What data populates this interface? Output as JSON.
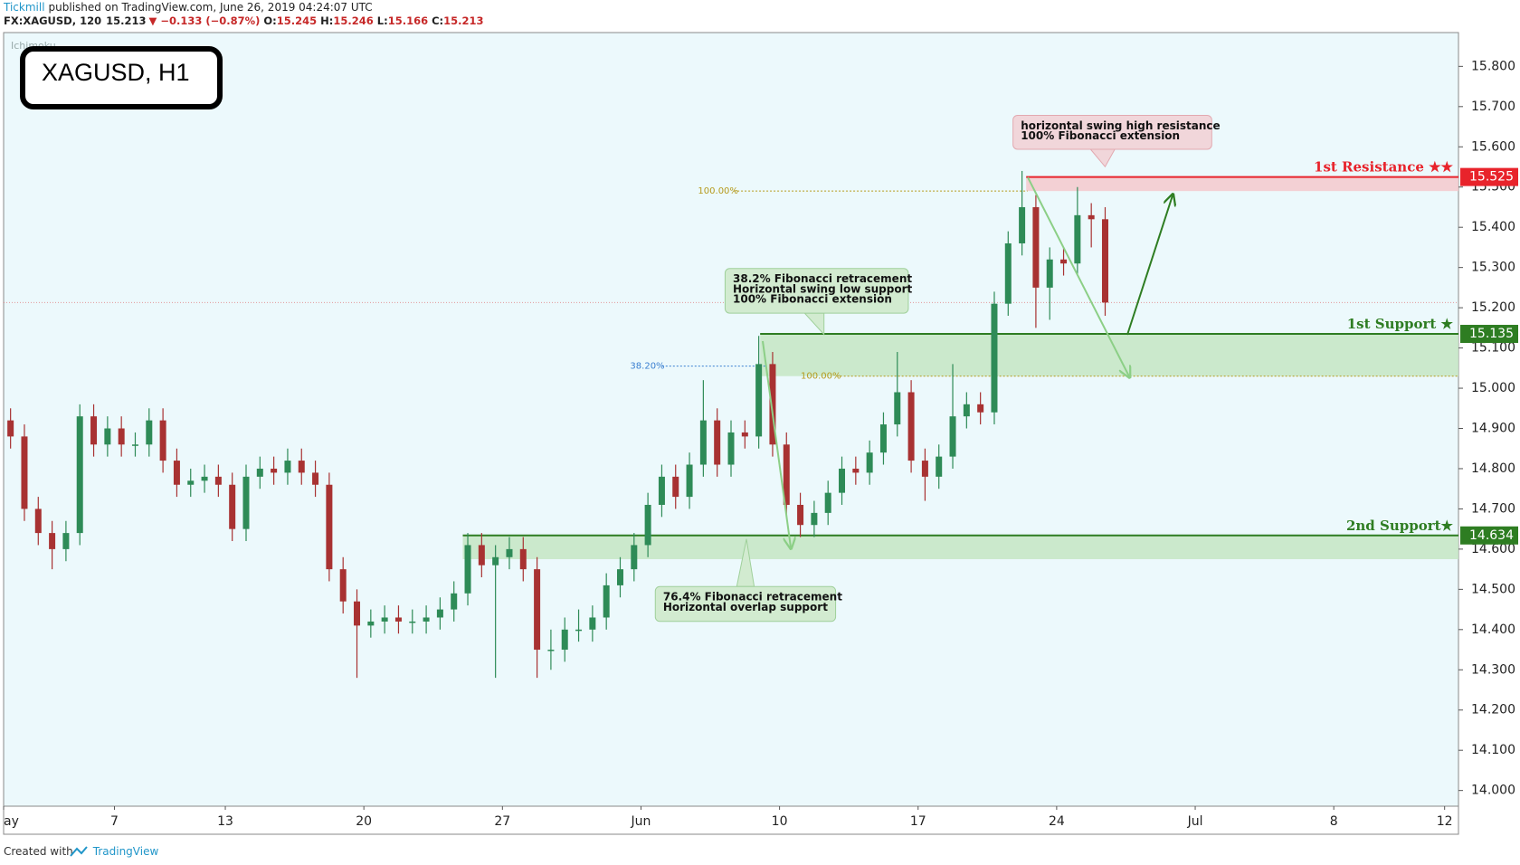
{
  "header": {
    "author": "Tickmill",
    "published": "published on TradingView.com, June 26, 2019 04:24:07 UTC",
    "symbol": "FX:XAGUSD, 120",
    "last": "15.213",
    "change": "▼ −0.133 (−0.87%)",
    "ohlc": [
      {
        "label": "O:",
        "value": "15.245"
      },
      {
        "label": "H:",
        "value": "15.246"
      },
      {
        "label": "L:",
        "value": "15.166"
      },
      {
        "label": "C:",
        "value": "15.213"
      }
    ]
  },
  "footer": {
    "created": "Created with",
    "brand": "TradingView"
  },
  "chart_data": {
    "type": "candlestick",
    "title": "XAGUSD, H1",
    "indicator": "Ichimoku",
    "up_color": "#2e8b57",
    "down_color": "#a83232",
    "xlim": [
      -13,
      39.5
    ],
    "ylim": [
      13.961,
      15.884
    ],
    "xticks": [
      {
        "value": -13,
        "label": "ay"
      },
      {
        "value": -9,
        "label": "7"
      },
      {
        "value": -5,
        "label": "13"
      },
      {
        "value": 0,
        "label": "20"
      },
      {
        "value": 5,
        "label": "27"
      },
      {
        "value": 10,
        "label": "Jun"
      },
      {
        "value": 15,
        "label": "10"
      },
      {
        "value": 20,
        "label": "17"
      },
      {
        "value": 25,
        "label": "24"
      },
      {
        "value": 30,
        "label": "Jul"
      },
      {
        "value": 35,
        "label": "8"
      },
      {
        "value": 39,
        "label": "12"
      }
    ],
    "yticks": [
      {
        "value": 14.0,
        "label": "14.000"
      },
      {
        "value": 14.1,
        "label": "14.100"
      },
      {
        "value": 14.2,
        "label": "14.200"
      },
      {
        "value": 14.3,
        "label": "14.300"
      },
      {
        "value": 14.4,
        "label": "14.400"
      },
      {
        "value": 14.5,
        "label": "14.500"
      },
      {
        "value": 14.6,
        "label": "14.600"
      },
      {
        "value": 14.7,
        "label": "14.700"
      },
      {
        "value": 14.8,
        "label": "14.800"
      },
      {
        "value": 14.9,
        "label": "14.900"
      },
      {
        "value": 15.0,
        "label": "15.000"
      },
      {
        "value": 15.1,
        "label": "15.100"
      },
      {
        "value": 15.2,
        "label": "15.200"
      },
      {
        "value": 15.3,
        "label": "15.300"
      },
      {
        "value": 15.4,
        "label": "15.400"
      },
      {
        "value": 15.5,
        "label": "15.500"
      },
      {
        "value": 15.6,
        "label": "15.600"
      },
      {
        "value": 15.7,
        "label": "15.700"
      },
      {
        "value": 15.8,
        "label": "15.800"
      }
    ],
    "x": [
      -12.75,
      -12.25,
      -11.75,
      -11.25,
      -10.75,
      -10.25,
      -9.75,
      -9.25,
      -8.75,
      -8.25,
      -7.75,
      -7.25,
      -6.75,
      -6.25,
      -5.75,
      -5.25,
      -4.75,
      -4.25,
      -3.75,
      -3.25,
      -2.75,
      -2.25,
      -1.75,
      -1.25,
      -0.75,
      -0.25,
      0.25,
      0.75,
      1.25,
      1.75,
      2.25,
      2.75,
      3.25,
      3.75,
      4.25,
      4.75,
      5.25,
      5.75,
      6.25,
      6.75,
      7.25,
      7.75,
      8.25,
      8.75,
      9.25,
      9.75,
      10.25,
      10.75,
      11.25,
      11.75,
      12.25,
      12.75,
      13.25,
      13.75,
      14.25,
      14.75,
      15.25,
      15.75,
      16.25,
      16.75,
      17.25,
      17.75,
      18.25,
      18.75,
      19.25,
      19.75,
      20.25,
      20.75,
      21.25,
      21.75,
      22.25,
      22.75,
      23.25,
      23.75,
      24.25,
      24.75,
      25.25,
      25.75,
      26.25,
      26.75
    ],
    "open": [
      14.92,
      14.88,
      14.7,
      14.64,
      14.6,
      14.64,
      14.93,
      14.86,
      14.9,
      14.86,
      14.86,
      14.92,
      14.82,
      14.76,
      14.77,
      14.78,
      14.76,
      14.65,
      14.78,
      14.8,
      14.79,
      14.82,
      14.79,
      14.76,
      14.55,
      14.47,
      14.41,
      14.42,
      14.43,
      14.42,
      14.42,
      14.43,
      14.45,
      14.49,
      14.61,
      14.56,
      14.58,
      14.6,
      14.55,
      14.35,
      14.35,
      14.4,
      14.4,
      14.43,
      14.51,
      14.55,
      14.61,
      14.71,
      14.78,
      14.73,
      14.81,
      14.92,
      14.81,
      14.89,
      14.88,
      15.06,
      14.86,
      14.71,
      14.66,
      14.69,
      14.74,
      14.8,
      14.79,
      14.84,
      14.91,
      14.99,
      14.82,
      14.78,
      14.83,
      14.93,
      14.96,
      14.94,
      15.21,
      15.36,
      15.45,
      15.25,
      15.32,
      15.31,
      15.43,
      15.42
    ],
    "high": [
      14.95,
      14.91,
      14.73,
      14.67,
      14.67,
      14.96,
      14.96,
      14.93,
      14.93,
      14.89,
      14.95,
      14.95,
      14.85,
      14.8,
      14.81,
      14.81,
      14.79,
      14.81,
      14.83,
      14.83,
      14.85,
      14.85,
      14.82,
      14.79,
      14.58,
      14.5,
      14.45,
      14.46,
      14.46,
      14.45,
      14.46,
      14.48,
      14.52,
      14.64,
      14.64,
      14.61,
      14.63,
      14.63,
      14.58,
      14.4,
      14.43,
      14.45,
      14.46,
      14.54,
      14.58,
      14.64,
      14.74,
      14.81,
      14.81,
      14.84,
      15.02,
      14.95,
      14.92,
      14.92,
      15.13,
      15.09,
      14.89,
      14.74,
      14.72,
      14.77,
      14.83,
      14.83,
      14.87,
      14.94,
      15.09,
      15.02,
      14.85,
      14.86,
      15.06,
      14.99,
      14.99,
      15.24,
      15.39,
      15.54,
      15.48,
      15.35,
      15.35,
      15.5,
      15.46,
      15.45
    ],
    "low": [
      14.85,
      14.67,
      14.61,
      14.55,
      14.57,
      14.61,
      14.83,
      14.83,
      14.83,
      14.83,
      14.83,
      14.79,
      14.73,
      14.73,
      14.74,
      14.73,
      14.62,
      14.62,
      14.75,
      14.76,
      14.76,
      14.76,
      14.73,
      14.52,
      14.44,
      14.28,
      14.38,
      14.39,
      14.39,
      14.39,
      14.39,
      14.4,
      14.42,
      14.46,
      14.53,
      14.28,
      14.55,
      14.52,
      14.28,
      14.3,
      14.32,
      14.37,
      14.37,
      14.4,
      14.48,
      14.52,
      14.58,
      14.68,
      14.7,
      14.7,
      14.78,
      14.78,
      14.78,
      14.85,
      14.85,
      14.83,
      14.68,
      14.63,
      14.63,
      14.66,
      14.71,
      14.76,
      14.76,
      14.81,
      14.88,
      14.79,
      14.72,
      14.75,
      14.8,
      14.9,
      14.91,
      14.91,
      15.18,
      15.33,
      15.15,
      15.17,
      15.28,
      15.28,
      15.35,
      15.18
    ],
    "close": [
      14.88,
      14.7,
      14.64,
      14.6,
      14.64,
      14.93,
      14.86,
      14.9,
      14.86,
      14.86,
      14.92,
      14.82,
      14.76,
      14.77,
      14.78,
      14.76,
      14.65,
      14.78,
      14.8,
      14.79,
      14.82,
      14.79,
      14.76,
      14.55,
      14.47,
      14.41,
      14.42,
      14.43,
      14.42,
      14.42,
      14.43,
      14.45,
      14.49,
      14.61,
      14.56,
      14.58,
      14.6,
      14.55,
      14.35,
      14.35,
      14.4,
      14.4,
      14.43,
      14.51,
      14.55,
      14.61,
      14.71,
      14.78,
      14.73,
      14.81,
      14.92,
      14.81,
      14.89,
      14.88,
      15.06,
      14.86,
      14.71,
      14.66,
      14.69,
      14.74,
      14.8,
      14.79,
      14.84,
      14.91,
      14.99,
      14.82,
      14.78,
      14.83,
      14.93,
      14.96,
      14.94,
      15.21,
      15.36,
      15.45,
      15.25,
      15.32,
      15.31,
      15.43,
      15.42,
      15.213
    ],
    "levels": [
      {
        "name": "1st Resistance ★★",
        "value": 15.525,
        "zone": [
          15.49,
          15.525
        ],
        "start": 23.9,
        "color": "#e8232b",
        "zone_color": "#f4c9cd"
      },
      {
        "name": "1st Support ★",
        "value": 15.135,
        "zone": [
          15.03,
          15.135
        ],
        "start": 14.3,
        "color": "#2e7d22",
        "zone_color": "#c5e6c3"
      },
      {
        "name": "2nd Support★",
        "value": 14.634,
        "zone": [
          14.575,
          14.634
        ],
        "start": 3.57,
        "color": "#2e7d22",
        "zone_color": "#c5e6c3"
      }
    ],
    "fib_levels": [
      {
        "label": "100.00%",
        "value": 15.49,
        "color": "#b59a1c"
      },
      {
        "label": "38.20%",
        "value": 15.055,
        "color": "#3a7fd0"
      },
      {
        "label": "100.00%",
        "value": 15.03,
        "color": "#b59a1c"
      }
    ],
    "annotations": [
      {
        "lines": [
          "horizontal swing high resistance",
          "100% Fibonacci extension"
        ]
      },
      {
        "lines": [
          "38.2% Fibonacci retracement",
          "Horizontal swing low support",
          "100% Fibonacci extension"
        ]
      },
      {
        "lines": [
          "76.4% Fibonacci retracement",
          "Horizontal overlap support"
        ]
      }
    ]
  }
}
